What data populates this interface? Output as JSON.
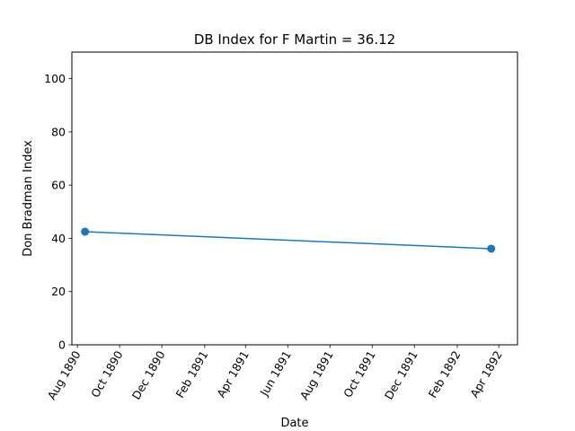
{
  "chart_data": {
    "type": "line",
    "title": "DB Index for F Martin = 36.12",
    "xlabel": "Date",
    "ylabel": "Don Bradman Index",
    "x_axis_type": "date",
    "xlim": [
      "1890-07-24",
      "1892-04-28"
    ],
    "ylim": [
      0,
      110
    ],
    "x_ticks": [
      {
        "date": "1890-08-01",
        "label": "Aug 1890"
      },
      {
        "date": "1890-10-01",
        "label": "Oct 1890"
      },
      {
        "date": "1890-12-01",
        "label": "Dec 1890"
      },
      {
        "date": "1891-02-01",
        "label": "Feb 1891"
      },
      {
        "date": "1891-04-01",
        "label": "Apr 1891"
      },
      {
        "date": "1891-06-01",
        "label": "Jun 1891"
      },
      {
        "date": "1891-08-01",
        "label": "Aug 1891"
      },
      {
        "date": "1891-10-01",
        "label": "Oct 1891"
      },
      {
        "date": "1891-12-01",
        "label": "Dec 1891"
      },
      {
        "date": "1892-02-01",
        "label": "Feb 1892"
      },
      {
        "date": "1892-04-01",
        "label": "Apr 1892"
      }
    ],
    "y_ticks": [
      0,
      20,
      40,
      60,
      80,
      100
    ],
    "grid": false,
    "series": [
      {
        "color": "#1f77b4",
        "marker": "circle",
        "points": [
          {
            "x": "1890-08-12",
            "y": 42.5
          },
          {
            "x": "1892-03-21",
            "y": 36.12
          }
        ]
      }
    ]
  }
}
